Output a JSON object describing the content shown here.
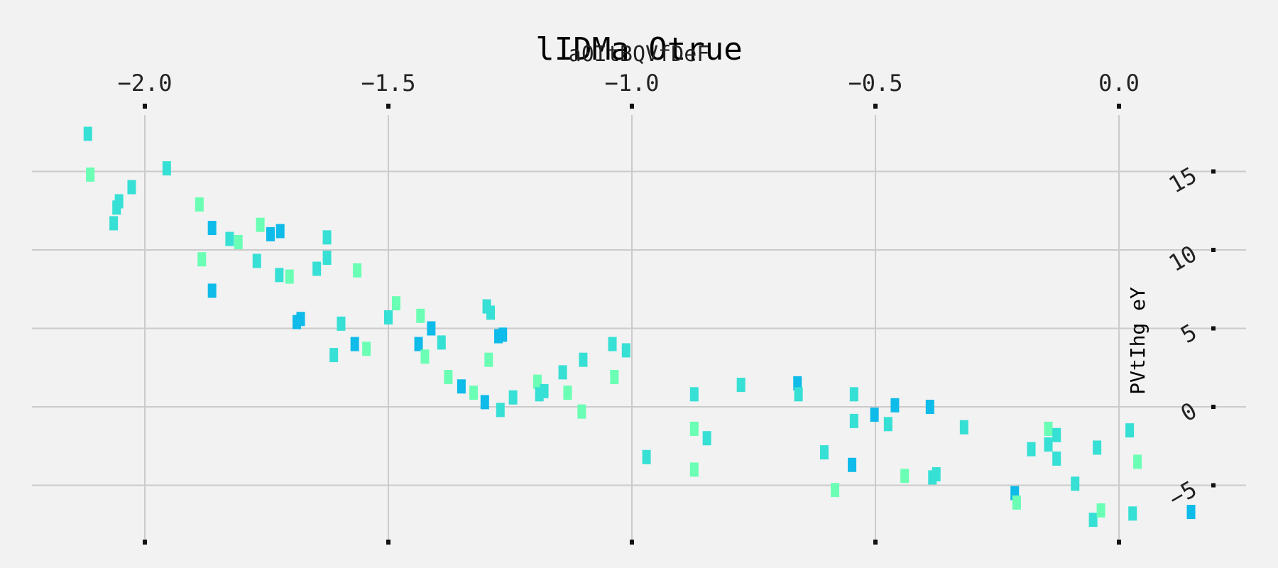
{
  "chart_data": {
    "type": "scatter",
    "title": "lIDMa Otrue",
    "xlabel": "a0ItBQVfDeF",
    "ylabel": "PVtIhg eY",
    "x_axis_position": "top",
    "y_axis_position": "right",
    "xlim": [
      -2.22,
      0.26
    ],
    "ylim": [
      -8.8,
      18.0
    ],
    "x_ticks": [
      -2.0,
      -1.5,
      -1.0,
      -0.5,
      0.0
    ],
    "x_tick_labels": [
      "−2.0",
      "−1.5",
      "−1.0",
      "−0.5",
      "0.0"
    ],
    "y_ticks": [
      -5,
      0,
      5,
      10,
      15
    ],
    "y_tick_labels": [
      "−5",
      "0",
      "5",
      "10",
      "15"
    ],
    "grid": true,
    "marker": "thin vertical bar",
    "colors": {
      "background": "#f2f2f2",
      "grid": "#cbcbcb",
      "palette": [
        "#0fbbe8",
        "#36e0d4",
        "#6affb4"
      ]
    },
    "points": [
      {
        "x": -2.117,
        "y": 17.4,
        "c": 1
      },
      {
        "x": -2.112,
        "y": 14.8,
        "c": 2
      },
      {
        "x": -2.064,
        "y": 11.7,
        "c": 1
      },
      {
        "x": -2.058,
        "y": 12.7,
        "c": 1
      },
      {
        "x": -2.053,
        "y": 13.1,
        "c": 1
      },
      {
        "x": -2.027,
        "y": 14.0,
        "c": 1
      },
      {
        "x": -1.955,
        "y": 15.2,
        "c": 1
      },
      {
        "x": -1.888,
        "y": 12.9,
        "c": 2
      },
      {
        "x": -1.883,
        "y": 9.4,
        "c": 2
      },
      {
        "x": -1.862,
        "y": 11.4,
        "c": 0
      },
      {
        "x": -1.862,
        "y": 7.4,
        "c": 0
      },
      {
        "x": -1.826,
        "y": 10.7,
        "c": 1
      },
      {
        "x": -1.808,
        "y": 10.5,
        "c": 2
      },
      {
        "x": -1.77,
        "y": 9.3,
        "c": 1
      },
      {
        "x": -1.763,
        "y": 11.6,
        "c": 2
      },
      {
        "x": -1.742,
        "y": 11.0,
        "c": 0
      },
      {
        "x": -1.724,
        "y": 8.4,
        "c": 1
      },
      {
        "x": -1.722,
        "y": 11.2,
        "c": 0
      },
      {
        "x": -1.703,
        "y": 8.3,
        "c": 2
      },
      {
        "x": -1.688,
        "y": 5.4,
        "c": 0
      },
      {
        "x": -1.68,
        "y": 5.6,
        "c": 0
      },
      {
        "x": -1.647,
        "y": 8.8,
        "c": 1
      },
      {
        "x": -1.626,
        "y": 10.8,
        "c": 1
      },
      {
        "x": -1.626,
        "y": 9.5,
        "c": 1
      },
      {
        "x": -1.612,
        "y": 3.3,
        "c": 1
      },
      {
        "x": -1.597,
        "y": 5.3,
        "c": 1
      },
      {
        "x": -1.569,
        "y": 4.0,
        "c": 0
      },
      {
        "x": -1.564,
        "y": 8.7,
        "c": 2
      },
      {
        "x": -1.545,
        "y": 3.7,
        "c": 2
      },
      {
        "x": -1.5,
        "y": 5.7,
        "c": 1
      },
      {
        "x": -1.484,
        "y": 6.6,
        "c": 2
      },
      {
        "x": -1.438,
        "y": 4.0,
        "c": 0
      },
      {
        "x": -1.434,
        "y": 5.8,
        "c": 2
      },
      {
        "x": -1.425,
        "y": 3.2,
        "c": 2
      },
      {
        "x": -1.412,
        "y": 5.0,
        "c": 0
      },
      {
        "x": -1.391,
        "y": 4.1,
        "c": 1
      },
      {
        "x": -1.377,
        "y": 1.9,
        "c": 2
      },
      {
        "x": -1.35,
        "y": 1.3,
        "c": 0
      },
      {
        "x": -1.325,
        "y": 0.9,
        "c": 2
      },
      {
        "x": -1.302,
        "y": 0.3,
        "c": 0
      },
      {
        "x": -1.298,
        "y": 6.4,
        "c": 1
      },
      {
        "x": -1.294,
        "y": 3.0,
        "c": 2
      },
      {
        "x": -1.29,
        "y": 6.0,
        "c": 1
      },
      {
        "x": -1.274,
        "y": 4.5,
        "c": 0
      },
      {
        "x": -1.27,
        "y": -0.2,
        "c": 1
      },
      {
        "x": -1.265,
        "y": 4.6,
        "c": 0
      },
      {
        "x": -1.244,
        "y": 0.6,
        "c": 1
      },
      {
        "x": -1.194,
        "y": 1.6,
        "c": 2
      },
      {
        "x": -1.19,
        "y": 0.8,
        "c": 1
      },
      {
        "x": -1.18,
        "y": 1.0,
        "c": 1
      },
      {
        "x": -1.142,
        "y": 2.2,
        "c": 1
      },
      {
        "x": -1.132,
        "y": 0.9,
        "c": 2
      },
      {
        "x": -1.103,
        "y": -0.3,
        "c": 2
      },
      {
        "x": -1.1,
        "y": 3.0,
        "c": 1
      },
      {
        "x": -1.04,
        "y": 4.0,
        "c": 1
      },
      {
        "x": -1.036,
        "y": 1.9,
        "c": 2
      },
      {
        "x": -1.012,
        "y": 3.6,
        "c": 1
      },
      {
        "x": -0.97,
        "y": -3.2,
        "c": 1
      },
      {
        "x": -0.872,
        "y": 0.8,
        "c": 1
      },
      {
        "x": -0.872,
        "y": -1.4,
        "c": 2
      },
      {
        "x": -0.872,
        "y": -4.0,
        "c": 2
      },
      {
        "x": -0.846,
        "y": -2.0,
        "c": 1
      },
      {
        "x": -0.776,
        "y": 1.4,
        "c": 1
      },
      {
        "x": -0.66,
        "y": 1.5,
        "c": 0
      },
      {
        "x": -0.658,
        "y": 0.8,
        "c": 1
      },
      {
        "x": -0.605,
        "y": -2.9,
        "c": 1
      },
      {
        "x": -0.583,
        "y": -5.3,
        "c": 2
      },
      {
        "x": -0.548,
        "y": -3.7,
        "c": 0
      },
      {
        "x": -0.544,
        "y": 0.8,
        "c": 1
      },
      {
        "x": -0.544,
        "y": -0.9,
        "c": 1
      },
      {
        "x": -0.502,
        "y": -0.5,
        "c": 0
      },
      {
        "x": -0.474,
        "y": -1.1,
        "c": 1
      },
      {
        "x": -0.46,
        "y": 0.1,
        "c": 0
      },
      {
        "x": -0.44,
        "y": -4.4,
        "c": 2
      },
      {
        "x": -0.388,
        "y": 0.0,
        "c": 0
      },
      {
        "x": -0.383,
        "y": -4.5,
        "c": 1
      },
      {
        "x": -0.375,
        "y": -4.3,
        "c": 1
      },
      {
        "x": -0.318,
        "y": -1.3,
        "c": 1
      },
      {
        "x": -0.214,
        "y": -5.5,
        "c": 0
      },
      {
        "x": -0.21,
        "y": -6.1,
        "c": 2
      },
      {
        "x": -0.18,
        "y": -2.7,
        "c": 1
      },
      {
        "x": -0.145,
        "y": -1.4,
        "c": 2
      },
      {
        "x": -0.145,
        "y": -2.4,
        "c": 1
      },
      {
        "x": -0.128,
        "y": -1.8,
        "c": 1
      },
      {
        "x": -0.128,
        "y": -3.3,
        "c": 1
      },
      {
        "x": -0.09,
        "y": -4.9,
        "c": 1
      },
      {
        "x": -0.053,
        "y": -7.2,
        "c": 1
      },
      {
        "x": -0.045,
        "y": -2.6,
        "c": 1
      },
      {
        "x": -0.037,
        "y": -6.6,
        "c": 2
      },
      {
        "x": 0.022,
        "y": -1.5,
        "c": 1
      },
      {
        "x": 0.028,
        "y": -6.8,
        "c": 1
      },
      {
        "x": 0.038,
        "y": -3.5,
        "c": 2
      },
      {
        "x": 0.148,
        "y": -6.7,
        "c": 0
      }
    ]
  }
}
